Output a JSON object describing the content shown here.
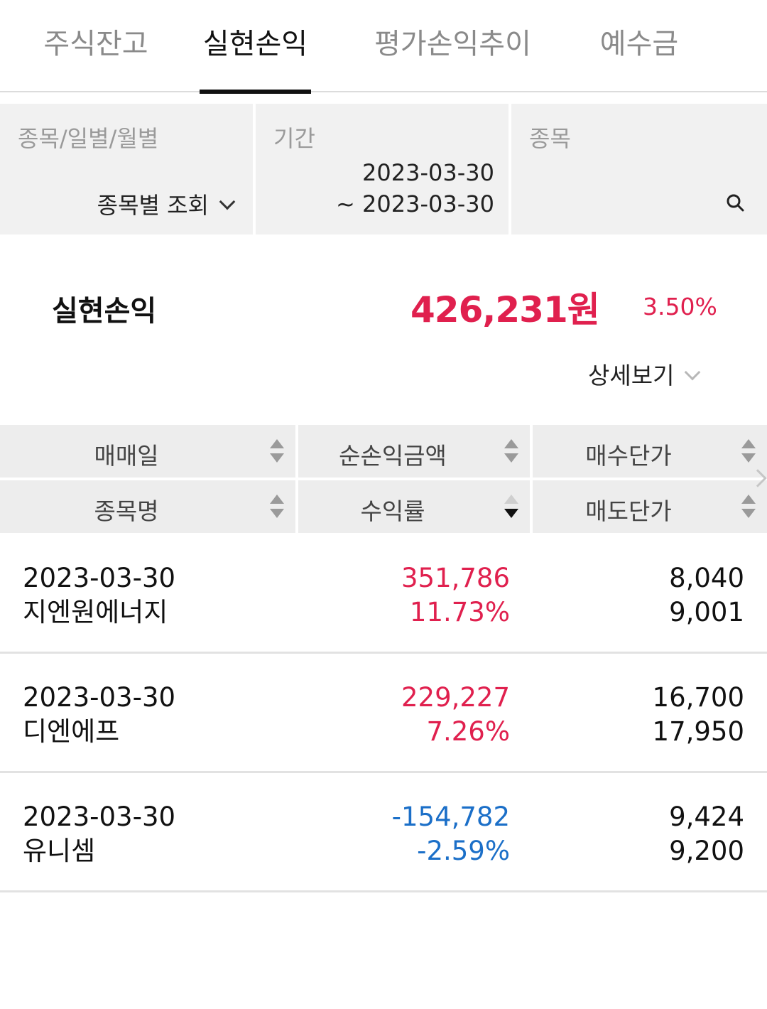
{
  "tabs": [
    {
      "label": "주식잔고",
      "active": false
    },
    {
      "label": "실현손익",
      "active": true
    },
    {
      "label": "평가손익추이",
      "active": false
    },
    {
      "label": "예수금",
      "active": false
    }
  ],
  "filters": {
    "type": {
      "label": "종목/일별/월별",
      "value": "종목별 조회"
    },
    "period": {
      "label": "기간",
      "start": "2023-03-30",
      "end": "~ 2023-03-30"
    },
    "stock": {
      "label": "종목",
      "icon": "search-icon"
    }
  },
  "summary": {
    "label": "실현손익",
    "amount": "426,231원",
    "rate": "3.50%",
    "detail_label": "상세보기"
  },
  "table": {
    "headers": {
      "row1": [
        "매매일",
        "순손익금액",
        "매수단가"
      ],
      "row2": [
        "종목명",
        "수익률",
        "매도단가"
      ]
    },
    "rows": [
      {
        "date": "2023-03-30",
        "name": "지엔원에너지",
        "profit": "351,786",
        "rate": "11.73%",
        "buy": "8,040",
        "sell": "9,001",
        "sign": "pos"
      },
      {
        "date": "2023-03-30",
        "name": "디엔에프",
        "profit": "229,227",
        "rate": "7.26%",
        "buy": "16,700",
        "sell": "17,950",
        "sign": "pos"
      },
      {
        "date": "2023-03-30",
        "name": "유니셈",
        "profit": "-154,782",
        "rate": "-2.59%",
        "buy": "9,424",
        "sell": "9,200",
        "sign": "neg"
      }
    ]
  },
  "colors": {
    "positive": "#e0204e",
    "negative": "#1b6fc8",
    "active_tab": "#111111"
  }
}
